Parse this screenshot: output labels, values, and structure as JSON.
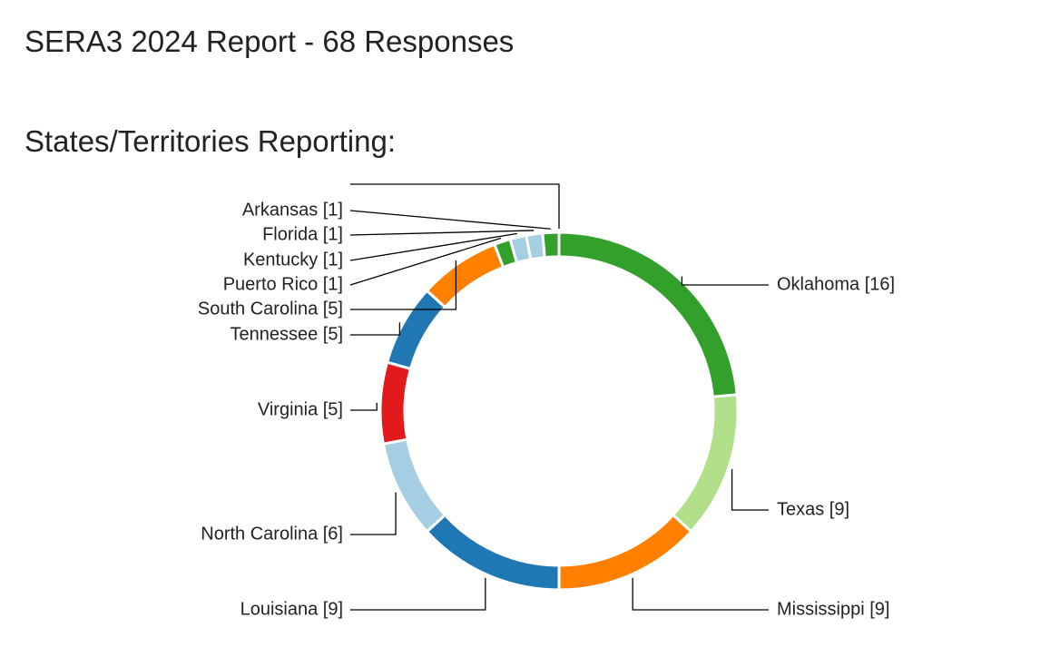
{
  "header": {
    "report_title": "SERA3 2024 Report - 68 Responses",
    "section_title": "States/Territories Reporting:"
  },
  "chart_data": {
    "type": "pie",
    "style": "donut",
    "total": 68,
    "start": "top, clockwise",
    "slices": [
      {
        "label": "Oklahoma [16]",
        "name": "Oklahoma",
        "value": 16,
        "color": "#33a02c",
        "label_side": "right"
      },
      {
        "label": "Texas [9]",
        "name": "Texas",
        "value": 9,
        "color": "#b2df8a",
        "label_side": "right"
      },
      {
        "label": "Mississippi [9]",
        "name": "Mississippi",
        "value": 9,
        "color": "#ff7f00",
        "label_side": "right"
      },
      {
        "label": "Louisiana [9]",
        "name": "Louisiana",
        "value": 9,
        "color": "#1f78b4",
        "label_side": "left"
      },
      {
        "label": "North Carolina [6]",
        "name": "North Carolina",
        "value": 6,
        "color": "#a6cee3",
        "label_side": "left"
      },
      {
        "label": "Virginia [5]",
        "name": "Virginia",
        "value": 5,
        "color": "#e31a1c",
        "label_side": "left"
      },
      {
        "label": "Tennessee [5]",
        "name": "Tennessee",
        "value": 5,
        "color": "#1f78b4",
        "label_side": "left"
      },
      {
        "label": "South Carolina [5]",
        "name": "South Carolina",
        "value": 5,
        "color": "#ff7f00",
        "label_side": "left"
      },
      {
        "label": "Puerto Rico [1]",
        "name": "Puerto Rico",
        "value": 1,
        "color": "#33a02c",
        "label_side": "left"
      },
      {
        "label": "Kentucky [1]",
        "name": "Kentucky",
        "value": 1,
        "color": "#a6cee3",
        "label_side": "left"
      },
      {
        "label": "Florida [1]",
        "name": "Florida",
        "value": 1,
        "color": "#a6cee3",
        "label_side": "left"
      },
      {
        "label": "Arkansas [1]",
        "name": "Arkansas",
        "value": 1,
        "color": "#33a02c",
        "label_side": "left"
      }
    ]
  }
}
